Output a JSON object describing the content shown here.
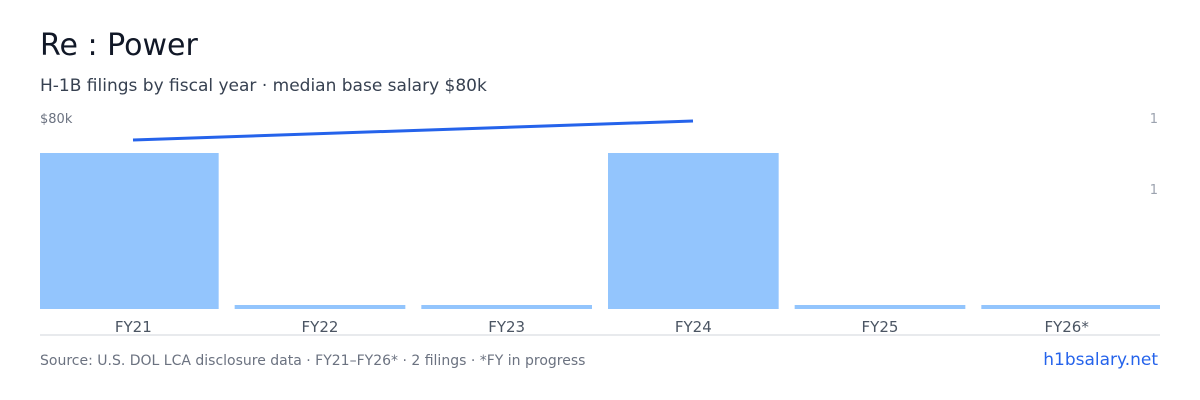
{
  "header": {
    "title": "Re : Power",
    "subtitle": "H-1B filings by fiscal year · median base salary $80k"
  },
  "axis": {
    "left_label": "$80k",
    "right_top": "1",
    "right_mid": "1"
  },
  "footer": {
    "source": "Source: U.S. DOL LCA disclosure data · FY21–FY26* · 2 filings · *FY in progress",
    "site": "h1bsalary.net"
  },
  "colors": {
    "bar": "#93c5fd",
    "line": "#2563eb",
    "axis": "#d1d5db",
    "tick_label": "#4b5563"
  },
  "chart_data": {
    "type": "bar",
    "categories": [
      "FY21",
      "FY22",
      "FY23",
      "FY24",
      "FY25",
      "FY26*"
    ],
    "series": [
      {
        "values": [
          1,
          0,
          0,
          1,
          0,
          0
        ]
      }
    ],
    "line_series": {
      "x": [
        "FY21",
        "FY23.5"
      ],
      "values": [
        78000,
        80000
      ]
    },
    "right_axis_range": [
      0,
      1.3
    ],
    "grid": false
  }
}
